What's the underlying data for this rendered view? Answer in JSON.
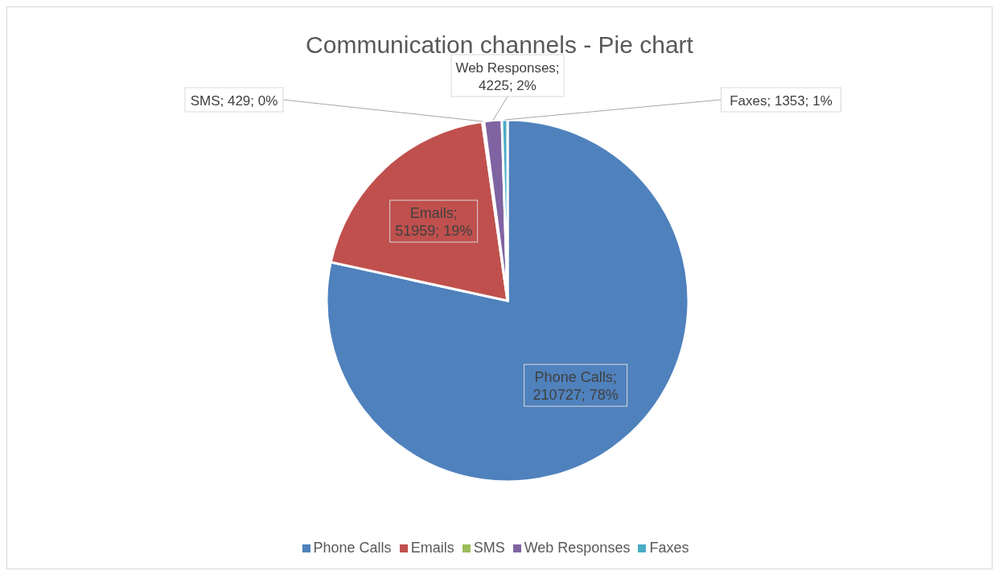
{
  "chart_data": {
    "type": "pie",
    "title": "Communication channels - Pie chart",
    "categories": [
      "Phone Calls",
      "Emails",
      "SMS",
      "Web Responses",
      "Faxes"
    ],
    "values": [
      210727,
      51959,
      429,
      4225,
      1353
    ],
    "colors": [
      "#4f81bd",
      "#c0504d",
      "#9bbb59",
      "#8064a2",
      "#4bacc6"
    ],
    "value_labels": [
      "Phone Calls; 210727; 78%",
      "Emails; 51959; 19%",
      "SMS; 429; 0%",
      "Web Responses; 4225; 2%",
      "Faxes; 1353; 1%"
    ],
    "legend": "bottom"
  }
}
